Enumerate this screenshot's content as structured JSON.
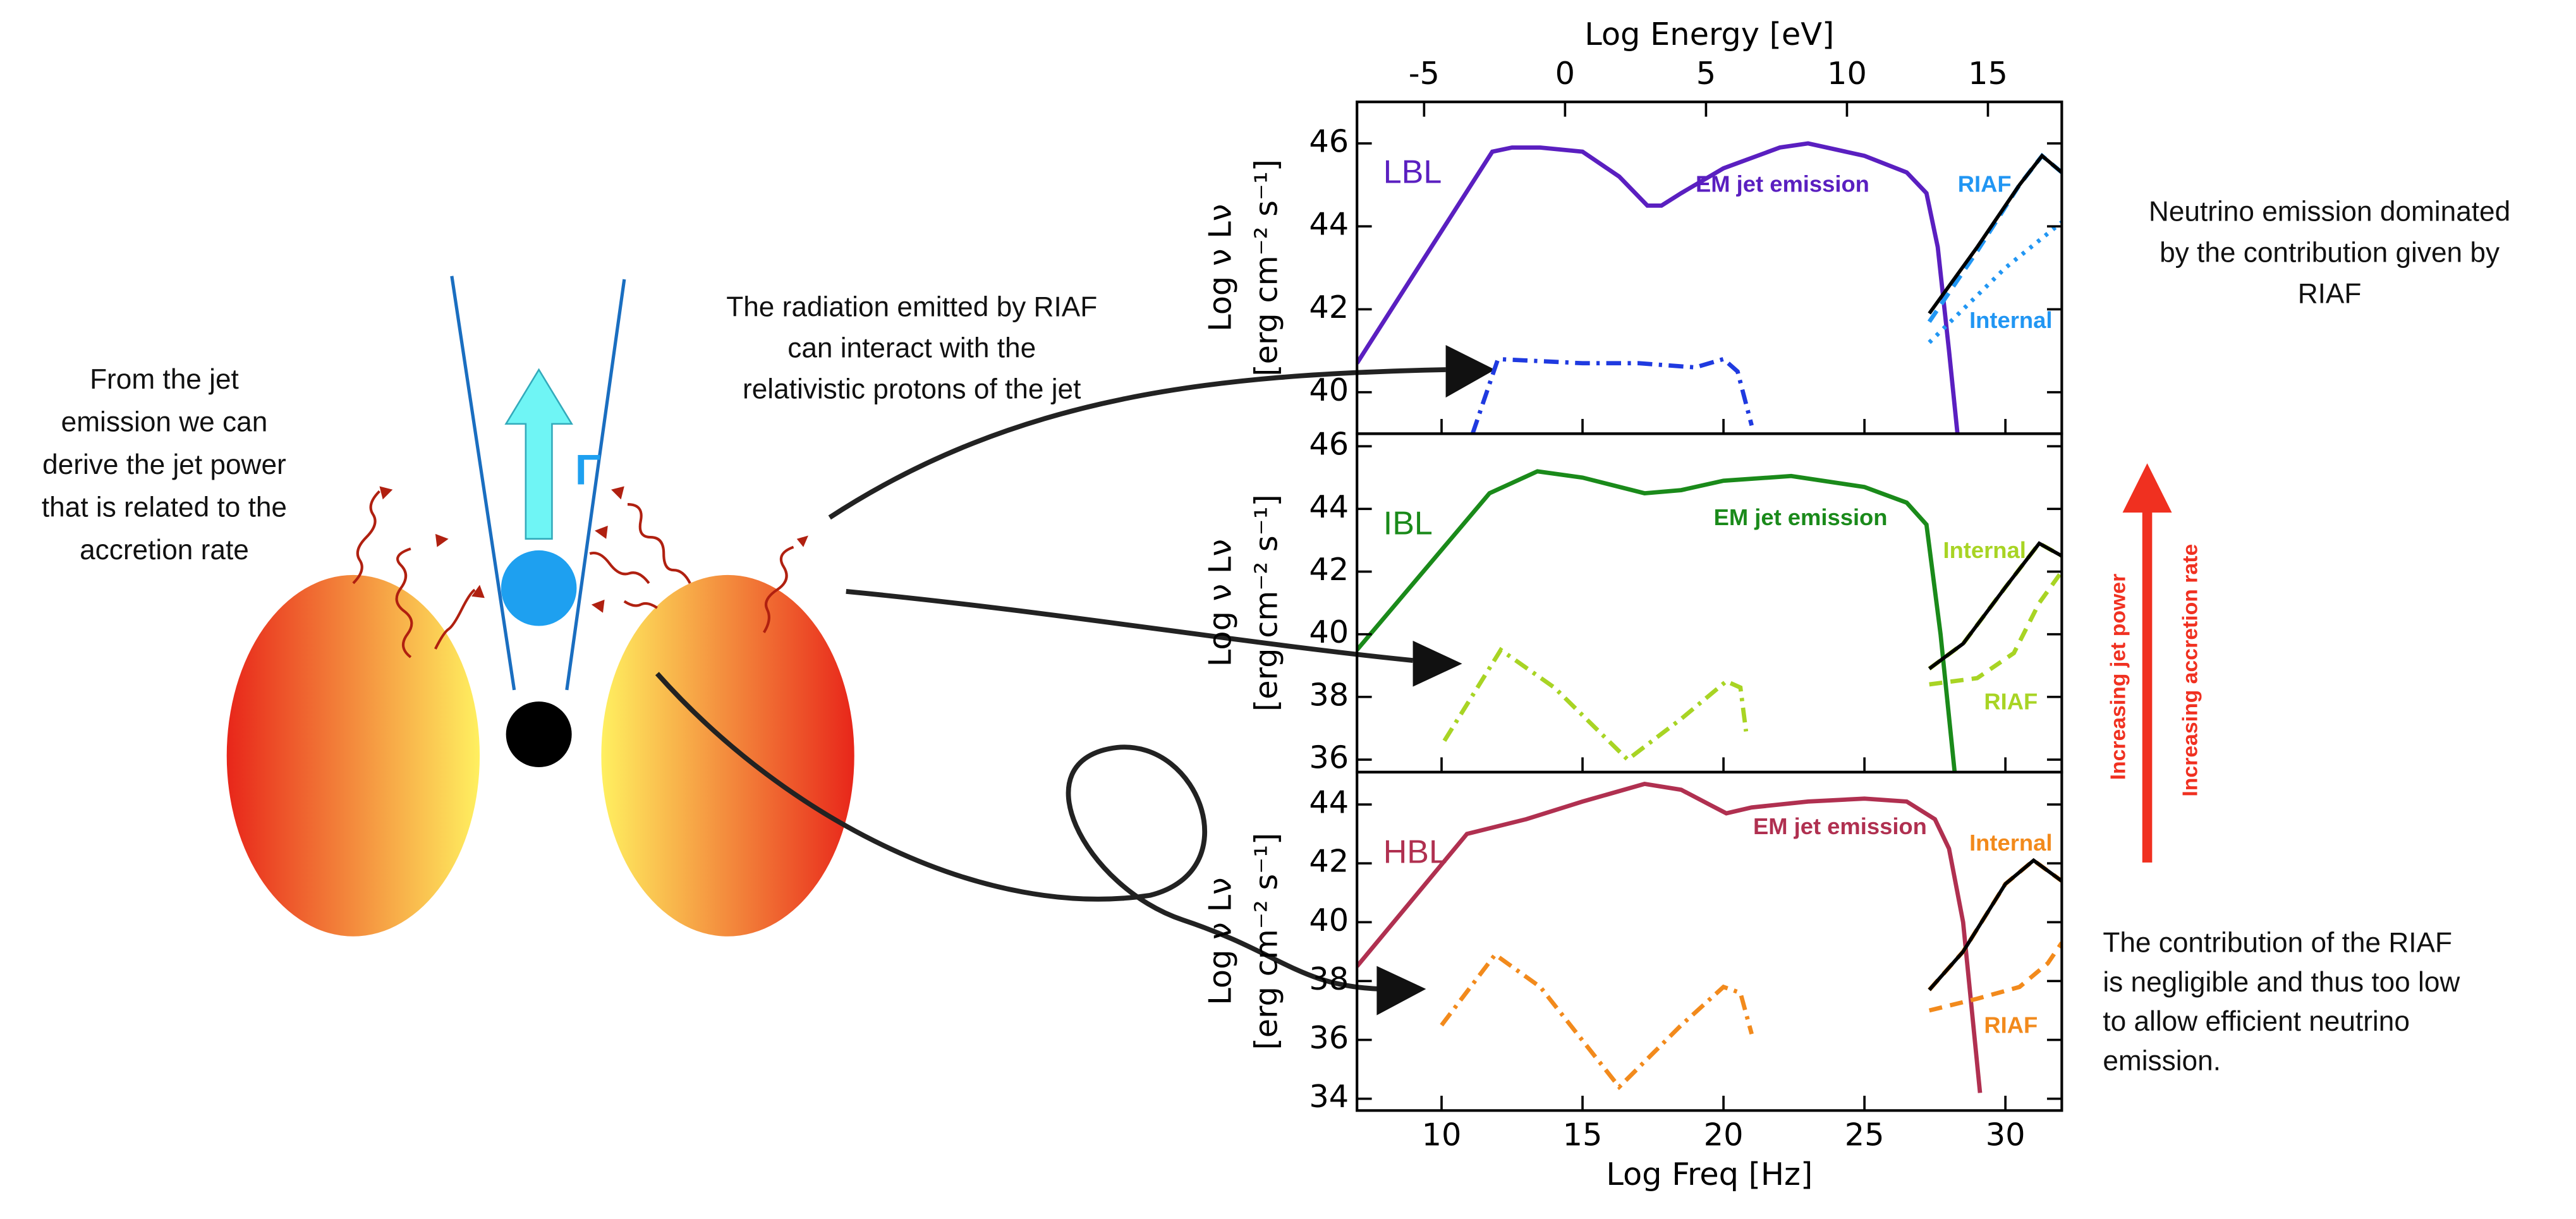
{
  "chart_data": [
    {
      "type": "line",
      "title": "LBL",
      "title_color": "#5a1fc0",
      "x2label": "Log Energy [eV]",
      "x2lim": [
        -7.38,
        17.62
      ],
      "x2ticks": [
        -5,
        0,
        5,
        10,
        15
      ],
      "ylabel": [
        "Log ν Lν",
        "[erg cm⁻² s⁻¹]"
      ],
      "xlim": [
        7,
        32
      ],
      "xticks": [
        10,
        15,
        20,
        25,
        30
      ],
      "ylim": [
        39,
        47
      ],
      "yticks": [
        40,
        42,
        44,
        46
      ],
      "series": [
        {
          "name": "EM  jet emission",
          "color": "#5a1fc0",
          "style": "solid",
          "x": [
            7,
            11.8,
            12.5,
            13.5,
            15,
            16.3,
            17.3,
            17.8,
            18.5,
            20,
            22,
            23,
            25,
            26.5,
            27.2,
            27.6,
            28,
            28.3
          ],
          "values": [
            40.7,
            45.8,
            45.9,
            45.9,
            45.8,
            45.2,
            44.5,
            44.5,
            44.8,
            45.4,
            45.9,
            46.0,
            45.7,
            45.3,
            44.8,
            43.5,
            41.0,
            39
          ]
        },
        {
          "color": "#1f3ae0",
          "style": "dashdot",
          "x": [
            11.1,
            12,
            15,
            17,
            19,
            20,
            20.5,
            21
          ],
          "values": [
            39,
            40.8,
            40.7,
            40.7,
            40.6,
            40.8,
            40.5,
            39.2
          ]
        },
        {
          "name": "RIAF",
          "color": "#2196f3",
          "style": "dashed",
          "x": [
            27.3,
            29,
            30.5,
            31.3,
            32
          ],
          "values": [
            41.7,
            43.4,
            45.0,
            45.7,
            45.3
          ]
        },
        {
          "name": "Internal",
          "color": "#2196f3",
          "style": "dotted",
          "x": [
            27.3,
            30,
            32
          ],
          "values": [
            41.2,
            43.0,
            44.1
          ]
        },
        {
          "color": "#000000",
          "style": "solid",
          "x": [
            27.3,
            29,
            30.5,
            31.3,
            32
          ],
          "values": [
            41.9,
            43.5,
            45.0,
            45.7,
            45.3
          ]
        }
      ]
    },
    {
      "type": "line",
      "title": "IBL",
      "title_color": "#1a8a1a",
      "ylabel": [
        "Log ν Lν",
        "[erg cm⁻² s⁻¹]"
      ],
      "xlim": [
        7,
        32
      ],
      "xticks": [
        10,
        15,
        20,
        25,
        30
      ],
      "ylim": [
        35.6,
        46.4
      ],
      "yticks": [
        36,
        38,
        40,
        42,
        44,
        46
      ],
      "series": [
        {
          "name": "EM  jet emission",
          "color": "#1a8a1a",
          "style": "solid",
          "x": [
            7,
            11.7,
            13.4,
            15,
            17.2,
            18.5,
            20,
            22.4,
            25,
            26.5,
            27.2,
            27.7,
            28.2
          ],
          "values": [
            39.5,
            44.5,
            45.2,
            45.0,
            44.5,
            44.6,
            44.9,
            45.05,
            44.7,
            44.2,
            43.5,
            40.0,
            35.6
          ]
        },
        {
          "color": "#a8d424",
          "style": "dashdot",
          "x": [
            10.1,
            12.1,
            14,
            16.6,
            18.5,
            20.1,
            20.6,
            20.8
          ],
          "values": [
            36.6,
            39.5,
            38.3,
            36.0,
            37.3,
            38.5,
            38.3,
            36.9
          ]
        },
        {
          "name": "Internal",
          "color": "#a8d424",
          "style": "dashed",
          "x": [
            27.3,
            28.5,
            30,
            31.2,
            32
          ],
          "values": [
            38.9,
            39.7,
            41.5,
            42.9,
            42.5
          ]
        },
        {
          "name": "RIAF",
          "color": "#a8d424",
          "style": "dashed",
          "x": [
            27.3,
            29,
            30.3,
            31.2,
            32
          ],
          "values": [
            38.4,
            38.6,
            39.4,
            41.0,
            42.0
          ]
        },
        {
          "color": "#000000",
          "style": "solid",
          "x": [
            27.3,
            28.5,
            30,
            31.2,
            32
          ],
          "values": [
            38.9,
            39.7,
            41.5,
            42.9,
            42.5
          ]
        }
      ]
    },
    {
      "type": "line",
      "title": "HBL",
      "title_color": "#b03050",
      "ylabel": [
        "Log ν Lν",
        "[erg cm⁻² s⁻¹]"
      ],
      "xlabel": "Log Freq [Hz]",
      "xlim": [
        7,
        32
      ],
      "xticks": [
        10,
        15,
        20,
        25,
        30
      ],
      "ylim": [
        33.6,
        45.1
      ],
      "yticks": [
        34,
        36,
        38,
        40,
        42,
        44
      ],
      "series": [
        {
          "name": "EM  jet emission",
          "color": "#b03050",
          "style": "solid",
          "x": [
            7,
            10.9,
            13,
            15,
            17.2,
            18.5,
            19.5,
            20.1,
            21,
            23,
            25,
            26.5,
            27.5,
            28,
            28.5,
            29.1
          ],
          "values": [
            38.5,
            43.0,
            43.5,
            44.1,
            44.7,
            44.5,
            44.0,
            43.7,
            43.9,
            44.1,
            44.2,
            44.1,
            43.5,
            42.5,
            40.0,
            34.2
          ]
        },
        {
          "color": "#f28a1c",
          "style": "dashdot",
          "x": [
            10,
            11.9,
            13.5,
            16.3,
            18.5,
            20,
            20.6,
            21
          ],
          "values": [
            36.5,
            38.9,
            37.8,
            34.4,
            36.5,
            37.8,
            37.6,
            36.2
          ]
        },
        {
          "name": "Internal",
          "color": "#f28a1c",
          "style": "dashed",
          "x": [
            27.3,
            28.5,
            30,
            31,
            32
          ],
          "values": [
            37.7,
            39.0,
            41.3,
            42.1,
            41.4
          ]
        },
        {
          "name": "RIAF",
          "color": "#f28a1c",
          "style": "dashed",
          "x": [
            27.3,
            29,
            30.5,
            31.5,
            32
          ],
          "values": [
            37.0,
            37.4,
            37.8,
            38.6,
            39.3
          ]
        },
        {
          "color": "#000000",
          "style": "solid",
          "x": [
            27.3,
            28.5,
            30,
            31,
            32
          ],
          "values": [
            37.7,
            39.0,
            41.3,
            42.1,
            41.4
          ]
        }
      ]
    }
  ],
  "annotations": {
    "jet_text": [
      "From the jet",
      "emission we can",
      "derive the jet power",
      "that is related to the",
      "accretion rate"
    ],
    "riaf_text": [
      "The radiation emitted by RIAF",
      "can interact with the",
      "relativistic protons of the jet"
    ],
    "gamma": "Γ",
    "dominated_text": [
      "Neutrino emission dominated",
      "by the contribution given by",
      "RIAF"
    ],
    "negligible_text": [
      "The contribution of the RIAF",
      "is negligible and thus too low",
      "to allow efficient neutrino",
      "emission."
    ],
    "arrow_left": "Increasing jet power",
    "arrow_right": "Increasing accretion rate"
  }
}
